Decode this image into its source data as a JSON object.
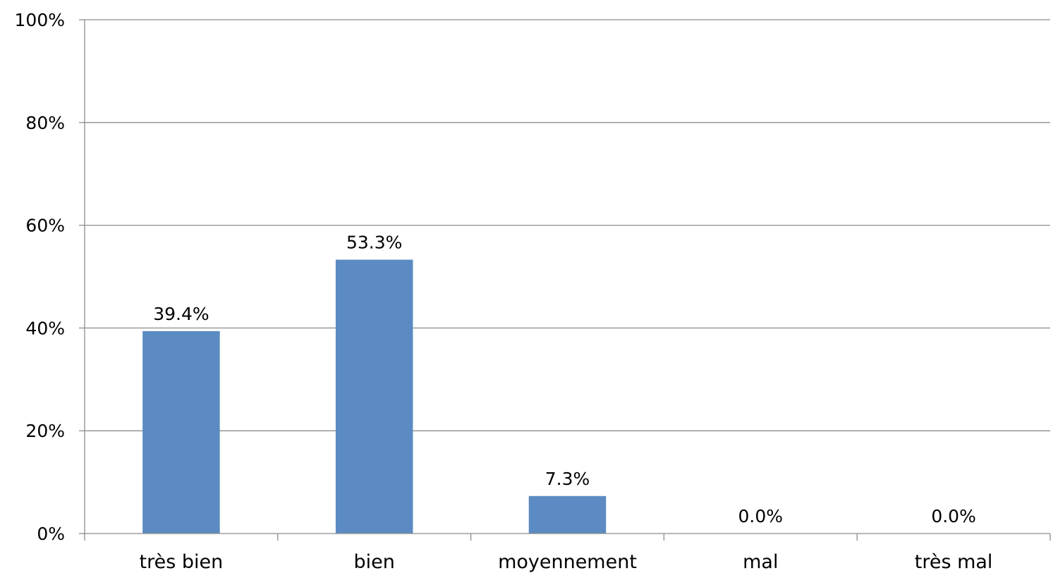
{
  "chart_data": {
    "type": "bar",
    "title": "",
    "xlabel": "",
    "ylabel": "",
    "categories": [
      "très bien",
      "bien",
      "moyennement",
      "mal",
      "très mal"
    ],
    "values": [
      39.4,
      53.3,
      7.3,
      0.0,
      0.0
    ],
    "data_labels": [
      "39.4%",
      "53.3%",
      "7.3%",
      "0.0%",
      "0.0%"
    ],
    "ylim": [
      0,
      100
    ],
    "yticks": [
      0,
      20,
      40,
      60,
      80,
      100
    ],
    "ytick_labels": [
      "0%",
      "20%",
      "40%",
      "60%",
      "80%",
      "100%"
    ],
    "grid": true,
    "legend": "none",
    "colors": {
      "bar": "#5B8BC2",
      "grid": "#8C8C8C",
      "axis": "#8C8C8C"
    }
  }
}
